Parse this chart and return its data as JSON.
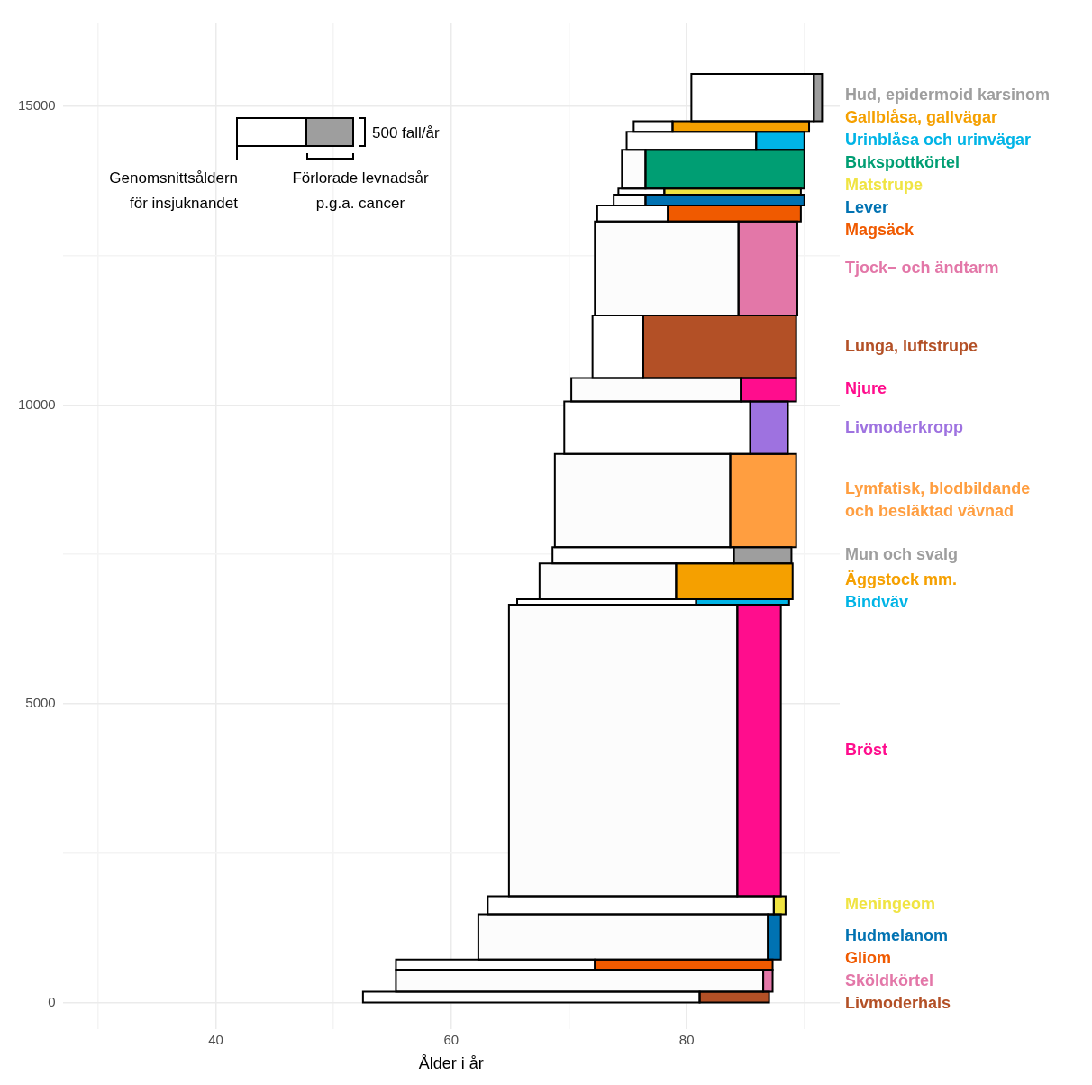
{
  "chart_data": {
    "type": "area",
    "xlabel": "Ålder i år",
    "xlim": [
      27,
      93
    ],
    "ylim": [
      -450,
      16400
    ],
    "xticks": [
      {
        "value": 30,
        "label": null
      },
      40,
      {
        "value": 50,
        "label": null
      },
      60,
      {
        "value": 70,
        "label": null
      },
      80,
      {
        "value": 90,
        "label": null
      }
    ],
    "yticks": [
      0,
      {
        "value": 2500,
        "label": null
      },
      5000,
      {
        "value": 7500,
        "label": null
      },
      10000,
      {
        "value": 12500,
        "label": null
      },
      15000
    ],
    "grid": true,
    "annotations": [
      "500 fall/år",
      "Genomsnittsåldern för insjuknandet",
      "Förlorade levnadsår p.g.a. cancer"
    ],
    "series": [
      {
        "color": "#ffffff",
        "x": [
          52.5,
          52.5,
          81.1,
          81.1,
          52.5
        ],
        "values": [
          0,
          180,
          180,
          0,
          0
        ]
      },
      {
        "name": "Livmoderhals",
        "color": "#b35026",
        "x": [
          81.1,
          81.1,
          87.0,
          87.0,
          81.1
        ],
        "values": [
          0,
          180,
          180,
          0,
          0
        ]
      },
      {
        "color": "#fcfcfc",
        "x": [
          55.3,
          55.3,
          86.5,
          86.5,
          55.3
        ],
        "values": [
          180,
          550,
          550,
          180,
          180
        ]
      },
      {
        "name": "Sköldkörtel",
        "color": "#e377a8",
        "x": [
          86.5,
          86.5,
          87.3,
          87.3,
          86.5
        ],
        "values": [
          180,
          550,
          550,
          180,
          180
        ]
      },
      {
        "color": "#ffffff",
        "x": [
          55.3,
          55.3,
          72.2,
          72.2,
          55.3
        ],
        "values": [
          550,
          720,
          720,
          550,
          550
        ]
      },
      {
        "name": "Gliom",
        "color": "#f05a00",
        "x": [
          72.2,
          72.2,
          87.3,
          87.3,
          72.2
        ],
        "values": [
          550,
          720,
          720,
          550,
          550
        ]
      },
      {
        "color": "#fcfcfc",
        "x": [
          62.3,
          62.3,
          86.9,
          86.9,
          62.3
        ],
        "values": [
          720,
          1480,
          1480,
          720,
          720
        ]
      },
      {
        "name": "Hudmelanom",
        "color": "#0072b2",
        "x": [
          86.9,
          86.9,
          88.0,
          88.0,
          86.9
        ],
        "values": [
          720,
          1480,
          1480,
          720,
          720
        ]
      },
      {
        "color": "#ffffff",
        "x": [
          63.1,
          63.1,
          87.4,
          87.4,
          63.1
        ],
        "values": [
          1480,
          1780,
          1780,
          1480,
          1480
        ]
      },
      {
        "name": "Meningeom",
        "color": "#f0e442",
        "x": [
          87.4,
          87.4,
          88.4,
          88.4,
          87.4
        ],
        "values": [
          1480,
          1780,
          1780,
          1480,
          1480
        ]
      },
      {
        "color": "#fcfcfc",
        "x": [
          64.9,
          64.9,
          84.3,
          84.3,
          64.9
        ],
        "values": [
          1780,
          6660,
          6660,
          1780,
          1780
        ]
      },
      {
        "name": "Bröst",
        "color": "#ff0d8d",
        "x": [
          84.3,
          84.3,
          88.0,
          88.0,
          84.3
        ],
        "values": [
          1780,
          6660,
          6660,
          1780,
          1780
        ]
      },
      {
        "color": "#ffffff",
        "x": [
          65.6,
          65.6,
          80.8,
          80.8,
          65.6
        ],
        "values": [
          6660,
          6750,
          6750,
          6660,
          6660
        ]
      },
      {
        "name": "Bindväv",
        "color": "#00b4e6",
        "x": [
          80.8,
          80.8,
          88.7,
          88.7,
          80.8
        ],
        "values": [
          6660,
          6750,
          6750,
          6660,
          6660
        ]
      },
      {
        "color": "#fcfcfc",
        "x": [
          67.5,
          67.5,
          79.1,
          79.1,
          67.5
        ],
        "values": [
          6750,
          7350,
          7350,
          6750,
          6750
        ]
      },
      {
        "name": "Äggstock mm.",
        "color": "#f5a000",
        "x": [
          79.1,
          79.1,
          89.0,
          89.0,
          79.1
        ],
        "values": [
          6750,
          7350,
          7350,
          6750,
          6750
        ]
      },
      {
        "color": "#ffffff",
        "x": [
          68.6,
          68.6,
          84.0,
          84.0,
          68.6
        ],
        "values": [
          7350,
          7620,
          7620,
          7350,
          7350
        ]
      },
      {
        "name": "Mun och svalg",
        "color": "#9e9e9e",
        "x": [
          84.0,
          84.0,
          88.9,
          88.9,
          84.0
        ],
        "values": [
          7350,
          7620,
          7620,
          7350,
          7350
        ]
      },
      {
        "color": "#fcfcfc",
        "x": [
          68.8,
          68.8,
          83.7,
          83.7,
          68.8
        ],
        "values": [
          7620,
          9180,
          9180,
          7620,
          7620
        ]
      },
      {
        "name": "Lymfatisk, blodbildande och besläktad vävnad",
        "color": "#ff9e40",
        "x": [
          83.7,
          83.7,
          89.3,
          89.3,
          83.7
        ],
        "values": [
          7620,
          9180,
          9180,
          7620,
          7620
        ]
      },
      {
        "color": "#ffffff",
        "x": [
          69.6,
          69.6,
          85.4,
          85.4,
          69.6
        ],
        "values": [
          9180,
          10060,
          10060,
          9180,
          9180
        ]
      },
      {
        "name": "Livmoderkropp",
        "color": "#9e72e0",
        "x": [
          85.4,
          85.4,
          88.6,
          88.6,
          85.4
        ],
        "values": [
          9180,
          10060,
          10060,
          9180,
          9180
        ]
      },
      {
        "color": "#fcfcfc",
        "x": [
          70.2,
          70.2,
          84.6,
          84.6,
          70.2
        ],
        "values": [
          10060,
          10450,
          10450,
          10060,
          10060
        ]
      },
      {
        "name": "Njure",
        "color": "#ff0d8d",
        "x": [
          84.6,
          84.6,
          89.3,
          89.3,
          84.6
        ],
        "values": [
          10060,
          10450,
          10450,
          10060,
          10060
        ]
      },
      {
        "color": "#ffffff",
        "x": [
          72.0,
          72.0,
          76.3,
          76.3,
          72.0
        ],
        "values": [
          10450,
          11500,
          11500,
          10450,
          10450
        ]
      },
      {
        "name": "Lunga, luftstrupe",
        "color": "#b35026",
        "x": [
          76.3,
          76.3,
          89.3,
          89.3,
          76.3
        ],
        "values": [
          10450,
          11500,
          11500,
          10450,
          10450
        ]
      },
      {
        "color": "#fcfcfc",
        "x": [
          72.2,
          72.2,
          84.4,
          84.4,
          72.2
        ],
        "values": [
          11500,
          13070,
          13070,
          11500,
          11500
        ]
      },
      {
        "name": "Tjock− och ändtarm",
        "color": "#e377a8",
        "x": [
          84.4,
          84.4,
          89.4,
          89.4,
          84.4
        ],
        "values": [
          11500,
          13070,
          13070,
          11500,
          11500
        ]
      },
      {
        "color": "#ffffff",
        "x": [
          72.4,
          72.4,
          78.4,
          78.4,
          72.4
        ],
        "values": [
          13070,
          13340,
          13340,
          13070,
          13070
        ]
      },
      {
        "name": "Magsäck",
        "color": "#f05a00",
        "x": [
          78.4,
          78.4,
          89.7,
          89.7,
          78.4
        ],
        "values": [
          13070,
          13340,
          13340,
          13070,
          13070
        ]
      },
      {
        "color": "#fcfcfc",
        "x": [
          73.8,
          73.8,
          76.5,
          76.5,
          73.8
        ],
        "values": [
          13340,
          13520,
          13520,
          13340,
          13340
        ]
      },
      {
        "name": "Lever",
        "color": "#0072b2",
        "x": [
          76.5,
          76.5,
          90.0,
          90.0,
          76.5
        ],
        "values": [
          13340,
          13520,
          13520,
          13340,
          13340
        ]
      },
      {
        "color": "#ffffff",
        "x": [
          74.2,
          74.2,
          78.1,
          78.1,
          74.2
        ],
        "values": [
          13520,
          13620,
          13620,
          13520,
          13520
        ]
      },
      {
        "name": "Matstrupe",
        "color": "#f0e442",
        "x": [
          78.1,
          78.1,
          89.7,
          89.7,
          78.1
        ],
        "values": [
          13520,
          13620,
          13620,
          13520,
          13520
        ]
      },
      {
        "color": "#fcfcfc",
        "x": [
          74.5,
          74.5,
          76.5,
          76.5,
          74.5
        ],
        "values": [
          13620,
          14270,
          14270,
          13620,
          13620
        ]
      },
      {
        "name": "Bukspottkörtel",
        "color": "#009e73",
        "x": [
          76.5,
          76.5,
          90.0,
          90.0,
          76.5
        ],
        "values": [
          13620,
          14270,
          14270,
          13620,
          13620
        ]
      },
      {
        "color": "#ffffff",
        "x": [
          74.9,
          74.9,
          85.9,
          85.9,
          74.9
        ],
        "values": [
          14270,
          14570,
          14570,
          14270,
          14270
        ]
      },
      {
        "name": "Urinblåsa och urinvägar",
        "color": "#00b4e6",
        "x": [
          85.9,
          85.9,
          90.0,
          90.0,
          85.9
        ],
        "values": [
          14270,
          14570,
          14570,
          14270,
          14270
        ]
      },
      {
        "color": "#fcfcfc",
        "x": [
          75.5,
          75.5,
          78.8,
          78.8,
          75.5
        ],
        "values": [
          14570,
          14750,
          14750,
          14570,
          14570
        ]
      },
      {
        "name": "Gallblåsa, gallvägar",
        "color": "#f5a000",
        "x": [
          78.8,
          78.8,
          90.4,
          90.4,
          78.8
        ],
        "values": [
          14570,
          14750,
          14750,
          14570,
          14570
        ]
      },
      {
        "color": "#ffffff",
        "x": [
          80.4,
          80.4,
          90.8,
          90.8,
          80.4
        ],
        "values": [
          14750,
          15540,
          15540,
          14750,
          14750
        ]
      },
      {
        "name": "Hud, epidermoid karsinom",
        "color": "#9e9e9e",
        "x": [
          90.8,
          90.8,
          91.5,
          91.5,
          90.8
        ],
        "values": [
          14750,
          15540,
          15540,
          14750,
          14750
        ]
      }
    ]
  }
}
